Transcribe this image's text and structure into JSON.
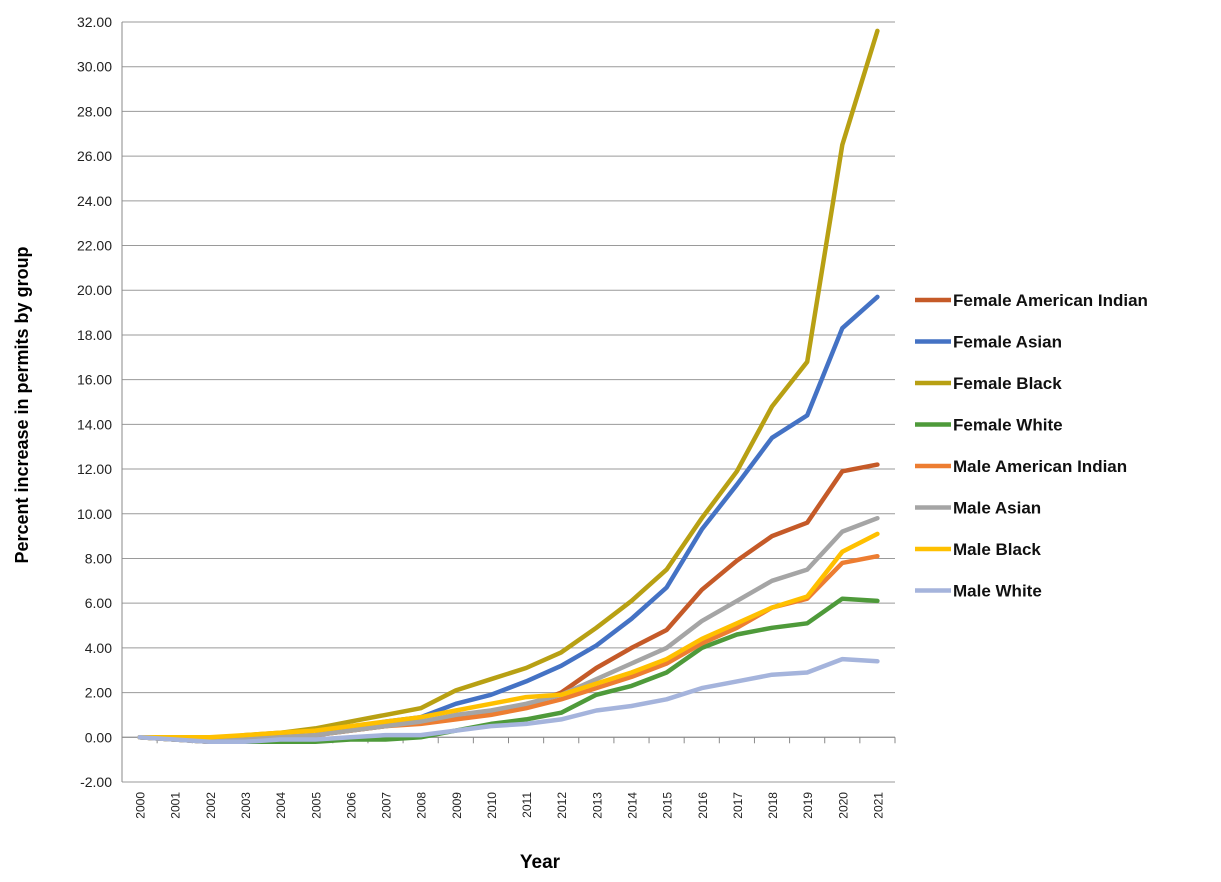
{
  "chart_data": {
    "type": "line",
    "title": "",
    "xlabel": "Year",
    "ylabel": "Percent increase in permits by group",
    "ylim": [
      -2,
      32
    ],
    "ytick_step": 2,
    "grid": true,
    "legend_placement": "right",
    "categories": [
      "2000",
      "2001",
      "2002",
      "2003",
      "2004",
      "2005",
      "2006",
      "2007",
      "2008",
      "2009",
      "2010",
      "2011",
      "2012",
      "2013",
      "2014",
      "2015",
      "2016",
      "2017",
      "2018",
      "2019",
      "2020",
      "2021"
    ],
    "y_tick_labels": [
      "-2.00",
      "0.00",
      "2.00",
      "4.00",
      "6.00",
      "8.00",
      "10.00",
      "12.00",
      "14.00",
      "16.00",
      "18.00",
      "20.00",
      "22.00",
      "24.00",
      "26.00",
      "28.00",
      "30.00",
      "32.00"
    ],
    "series": [
      {
        "name": "Female American Indian",
        "color": "#C55A28",
        "values": [
          0,
          -0.1,
          -0.2,
          -0.1,
          0.0,
          0.1,
          0.3,
          0.5,
          0.7,
          0.9,
          1.1,
          1.4,
          2.0,
          3.1,
          4.0,
          4.8,
          6.6,
          7.9,
          9.0,
          9.6,
          11.9,
          12.2
        ]
      },
      {
        "name": "Female Asian",
        "color": "#4472C4",
        "values": [
          0,
          -0.1,
          -0.2,
          -0.1,
          0.0,
          0.1,
          0.4,
          0.7,
          0.9,
          1.5,
          1.9,
          2.5,
          3.2,
          4.1,
          5.3,
          6.7,
          9.3,
          11.3,
          13.4,
          14.4,
          18.3,
          19.7
        ]
      },
      {
        "name": "Female Black",
        "color": "#B8A013",
        "values": [
          0,
          -0.1,
          -0.1,
          0.1,
          0.2,
          0.4,
          0.7,
          1.0,
          1.3,
          2.1,
          2.6,
          3.1,
          3.8,
          4.9,
          6.1,
          7.5,
          9.8,
          11.9,
          14.8,
          16.8,
          26.5,
          31.6
        ]
      },
      {
        "name": "Female White",
        "color": "#4E9A3A",
        "values": [
          0,
          -0.1,
          -0.2,
          -0.2,
          -0.2,
          -0.2,
          -0.1,
          -0.1,
          0.0,
          0.3,
          0.6,
          0.8,
          1.1,
          1.9,
          2.3,
          2.9,
          4.0,
          4.6,
          4.9,
          5.1,
          6.2,
          6.1
        ]
      },
      {
        "name": "Male American Indian",
        "color": "#ED7D31",
        "values": [
          0,
          -0.1,
          -0.2,
          -0.1,
          0.0,
          0.1,
          0.3,
          0.5,
          0.6,
          0.8,
          1.0,
          1.3,
          1.7,
          2.2,
          2.7,
          3.3,
          4.2,
          4.9,
          5.8,
          6.2,
          7.8,
          8.1
        ]
      },
      {
        "name": "Male Asian",
        "color": "#A5A5A5",
        "values": [
          0,
          -0.1,
          -0.2,
          -0.1,
          0.0,
          0.1,
          0.3,
          0.5,
          0.7,
          1.0,
          1.2,
          1.5,
          1.9,
          2.6,
          3.3,
          4.0,
          5.2,
          6.1,
          7.0,
          7.5,
          9.2,
          9.8
        ]
      },
      {
        "name": "Male Black",
        "color": "#FFC000",
        "values": [
          0,
          0.0,
          0.0,
          0.1,
          0.2,
          0.3,
          0.5,
          0.7,
          0.9,
          1.2,
          1.5,
          1.8,
          1.9,
          2.4,
          2.9,
          3.5,
          4.4,
          5.1,
          5.8,
          6.3,
          8.3,
          9.1
        ]
      },
      {
        "name": "Male White",
        "color": "#A5B4DC",
        "values": [
          0,
          -0.1,
          -0.2,
          -0.2,
          -0.1,
          -0.1,
          0.0,
          0.1,
          0.1,
          0.3,
          0.5,
          0.6,
          0.8,
          1.2,
          1.4,
          1.7,
          2.2,
          2.5,
          2.8,
          2.9,
          3.5,
          3.4
        ]
      }
    ]
  }
}
